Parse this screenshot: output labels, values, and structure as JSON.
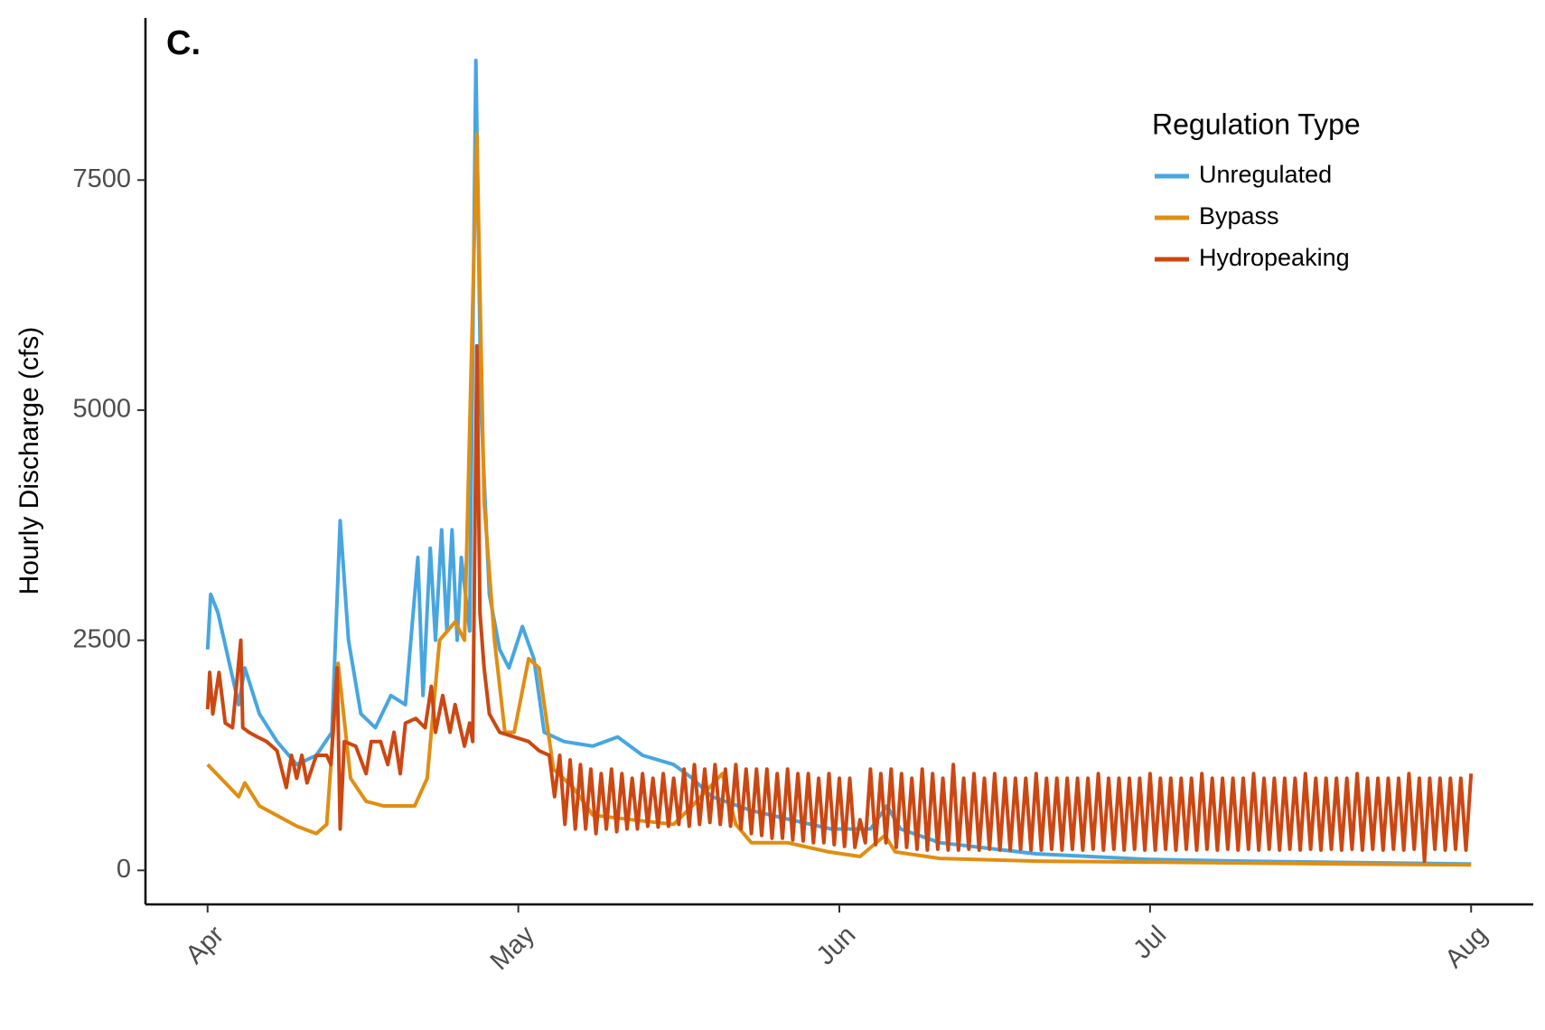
{
  "chart_data": {
    "type": "line",
    "panel_label": "C.",
    "y_label": "Hourly Discharge (cfs)",
    "legend_title": "Regulation Type",
    "legend": "top-right",
    "xlim": [
      -6,
      128
    ],
    "xticks": [
      {
        "value": 0,
        "label": "Apr"
      },
      {
        "value": 30,
        "label": "May"
      },
      {
        "value": 61,
        "label": "Jun"
      },
      {
        "value": 91,
        "label": "Jul"
      },
      {
        "value": 122,
        "label": "Aug"
      }
    ],
    "ylim": [
      -370,
      9260
    ],
    "yticks": [
      0,
      2500,
      5000,
      7500
    ],
    "grid": false,
    "series": [
      {
        "name": "Unregulated",
        "color": "#47a6e0",
        "x": [
          0,
          0.3,
          1,
          2,
          3,
          3.6,
          5,
          6.7,
          8.6,
          10.5,
          12,
          12.8,
          13.6,
          14.8,
          16.2,
          17.7,
          19.1,
          20.3,
          20.8,
          21.5,
          22,
          22.6,
          23.1,
          23.6,
          24.1,
          24.5,
          25.3,
          25.9,
          26.4,
          27.2,
          28.2,
          29.1,
          30.4,
          31.5,
          32.5,
          34.4,
          37.2,
          39.6,
          42,
          45,
          46.8,
          48.7,
          52.5,
          56.3,
          60.2,
          64,
          65.6,
          66.9,
          70.7,
          80,
          90.7,
          100,
          110,
          122
        ],
        "values": [
          2400,
          3000,
          2800,
          2300,
          1800,
          2200,
          1700,
          1400,
          1150,
          1250,
          1500,
          3800,
          2500,
          1700,
          1550,
          1900,
          1800,
          3400,
          1900,
          3500,
          2500,
          3700,
          2600,
          3700,
          2500,
          3400,
          2600,
          8800,
          5000,
          3000,
          2400,
          2200,
          2650,
          2300,
          1500,
          1400,
          1350,
          1450,
          1250,
          1150,
          1000,
          800,
          650,
          550,
          450,
          450,
          700,
          450,
          300,
          180,
          120,
          100,
          85,
          70
        ]
      },
      {
        "name": "Bypass",
        "color": "#e08e12",
        "x": [
          0,
          3,
          3.6,
          5,
          8.6,
          10.5,
          11.5,
          12.6,
          13.8,
          15.3,
          17,
          20,
          21.2,
          22.4,
          23.9,
          24.8,
          26,
          26.7,
          27.7,
          28.7,
          29.6,
          31,
          32,
          33.4,
          35.3,
          37.2,
          41,
          45,
          46.8,
          49.7,
          51,
          52.5,
          56,
          60,
          63,
          65.4,
          66.4,
          70.7,
          80,
          90,
          110,
          122
        ],
        "values": [
          1150,
          800,
          950,
          700,
          480,
          400,
          500,
          2250,
          1000,
          750,
          700,
          700,
          1000,
          2500,
          2700,
          2500,
          8000,
          4000,
          2500,
          1500,
          1500,
          2300,
          2200,
          1100,
          900,
          600,
          550,
          500,
          700,
          1050,
          500,
          300,
          300,
          200,
          150,
          380,
          200,
          130,
          100,
          90,
          70,
          60
        ]
      },
      {
        "name": "Hydropeaking",
        "color": "#cc4712",
        "x": [
          0,
          0.2,
          0.5,
          1.1,
          1.7,
          2.4,
          3.2,
          3.4,
          4,
          4.8,
          5.7,
          6.7,
          7.6,
          8.1,
          8.6,
          9.1,
          9.6,
          10.5,
          11.5,
          11.9,
          12.5,
          12.8,
          13.2,
          14.3,
          15.3,
          15.8,
          16.7,
          17.4,
          18,
          18.6,
          19.1,
          20.1,
          21,
          21.6,
          22,
          22.7,
          23.4,
          23.9,
          24.8,
          25.3,
          25.6,
          26,
          26.3,
          26.7,
          27.2,
          28.2,
          29.6,
          31,
          32,
          33,
          33.5,
          34,
          34.5,
          35,
          35.5,
          36,
          36.5,
          37,
          37.5,
          38,
          38.5,
          39,
          39.5,
          40,
          40.5,
          41,
          41.5,
          42,
          42.5,
          43,
          43.5,
          44,
          44.5,
          45,
          45.5,
          46,
          46.5,
          47,
          47.5,
          48,
          48.5,
          49,
          49.5,
          50,
          50.5,
          51,
          51.5,
          52,
          52.5,
          53,
          53.5,
          54,
          54.5,
          55,
          55.5,
          56,
          56.5,
          57,
          57.5,
          58,
          58.5,
          59,
          59.5,
          60,
          60.5,
          61,
          61.5,
          62,
          62.5,
          63,
          63.5,
          64,
          64.5,
          65,
          65.5,
          66,
          66.5,
          67,
          67.5,
          68,
          68.5,
          69,
          69.5,
          70,
          70.5,
          71,
          71.5,
          72,
          72.5,
          73,
          73.5,
          74,
          74.5,
          75,
          75.5,
          76,
          76.5,
          77,
          77.5,
          78,
          78.5,
          79,
          79.5,
          80,
          80.5,
          81,
          81.5,
          82,
          82.5,
          83,
          83.5,
          84,
          84.5,
          85,
          85.5,
          86,
          86.5,
          87,
          87.5,
          88,
          88.5,
          89,
          89.5,
          90,
          90.5,
          91,
          91.5,
          92,
          92.5,
          93,
          93.5,
          94,
          94.5,
          95,
          95.5,
          96,
          96.5,
          97,
          97.5,
          98,
          98.5,
          99,
          99.5,
          100,
          100.5,
          101,
          101.5,
          102,
          102.5,
          103,
          103.5,
          104,
          104.5,
          105,
          105.5,
          106,
          106.5,
          107,
          107.5,
          108,
          108.5,
          109,
          109.5,
          110,
          110.5,
          111,
          111.5,
          112,
          112.5,
          113,
          113.5,
          114,
          114.5,
          115,
          115.5,
          116,
          116.5,
          117,
          117.5,
          118,
          118.5,
          119,
          119.5,
          120,
          120.5,
          121,
          121.5,
          122
        ],
        "values": [
          1750,
          2150,
          1700,
          2150,
          1600,
          1550,
          2500,
          1550,
          1500,
          1450,
          1400,
          1300,
          900,
          1250,
          1000,
          1250,
          950,
          1250,
          1250,
          1150,
          2200,
          450,
          1400,
          1350,
          1050,
          1400,
          1400,
          1150,
          1500,
          1050,
          1600,
          1650,
          1550,
          2000,
          1500,
          1900,
          1500,
          1800,
          1350,
          1600,
          1400,
          5700,
          2800,
          2200,
          1700,
          1500,
          1450,
          1400,
          1300,
          1250,
          800,
          1250,
          500,
          1200,
          450,
          1150,
          450,
          1100,
          400,
          1050,
          450,
          1100,
          420,
          1050,
          450,
          1000,
          450,
          1050,
          480,
          1000,
          470,
          1050,
          480,
          1000,
          500,
          1100,
          480,
          1150,
          500,
          1100,
          520,
          1150,
          500,
          1100,
          480,
          1150,
          450,
          1100,
          400,
          1100,
          380,
          1100,
          350,
          1050,
          350,
          1100,
          330,
          1050,
          320,
          1050,
          300,
          1000,
          300,
          1050,
          280,
          1000,
          260,
          1000,
          250,
          550,
          300,
          1100,
          280,
          1050,
          300,
          1100,
          250,
          1050,
          250,
          1000,
          230,
          1100,
          220,
          1050,
          230,
          1000,
          220,
          1150,
          220,
          1000,
          230,
          1050,
          220,
          1000,
          230,
          1050,
          220,
          1000,
          220,
          1000,
          230,
          1000,
          220,
          1050,
          220,
          1000,
          230,
          1000,
          220,
          1000,
          230,
          1000,
          220,
          1000,
          230,
          1050,
          220,
          1000,
          230,
          1000,
          220,
          1000,
          230,
          1000,
          220,
          1050,
          220,
          1000,
          230,
          1000,
          220,
          1000,
          230,
          1000,
          220,
          1050,
          230,
          1000,
          220,
          1000,
          230,
          1000,
          220,
          1000,
          230,
          1050,
          220,
          1000,
          230,
          1000,
          220,
          1000,
          230,
          1000,
          220,
          1050,
          230,
          1000,
          220,
          1000,
          230,
          1000,
          220,
          1000,
          230,
          1050,
          220,
          1000,
          230,
          1000,
          220,
          1000,
          230,
          1000,
          220,
          1050,
          230,
          1000,
          100,
          1000,
          230,
          1000,
          220,
          1000,
          230,
          1000,
          220,
          1050
        ]
      }
    ]
  }
}
